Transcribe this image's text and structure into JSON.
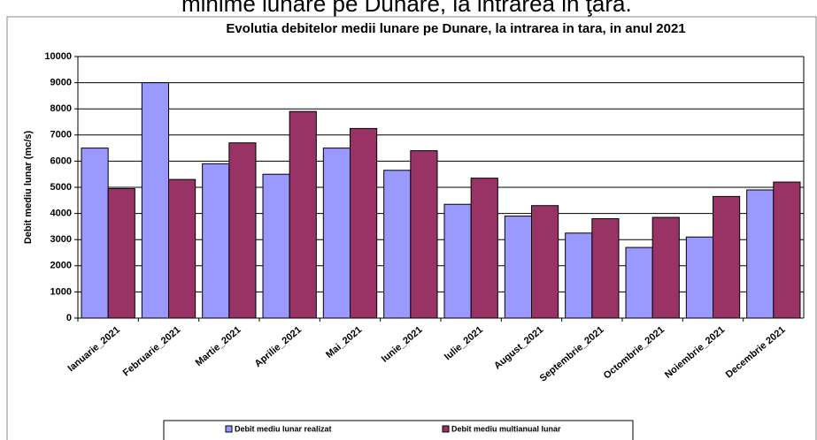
{
  "caption": "minime lunare pe Dunare, la intrarea in ţara.",
  "chart_data": {
    "type": "bar",
    "title": "Evolutia debitelor medii lunare pe Dunare, la intrarea in tara, in anul 2021",
    "y_label": "Debit mediu lunar (mc/s)",
    "categories": [
      "Ianuarie_2021",
      "Februarie_2021",
      "Martie_2021",
      "Aprilie_2021",
      "Mai_2021",
      "Iunie_2021",
      "Iulie_2021",
      "August_2021",
      "Septembrie_2021",
      "Octombrie_2021",
      "Noiembrie_2021",
      "Decembrie 2021"
    ],
    "series": [
      {
        "name": "Debit mediu lunar realizat",
        "color": "#9999ff",
        "values": [
          6500,
          9000,
          5900,
          5500,
          6500,
          5650,
          4350,
          3900,
          3250,
          2700,
          3100,
          4900
        ]
      },
      {
        "name": "Debit mediu multianual lunar",
        "color": "#993366",
        "values": [
          4950,
          5300,
          6700,
          7900,
          7250,
          6400,
          5350,
          4300,
          3800,
          3850,
          4650,
          5200
        ]
      }
    ],
    "ylim": [
      0,
      10000
    ],
    "yticks": [
      0,
      1000,
      2000,
      3000,
      4000,
      5000,
      6000,
      7000,
      8000,
      9000,
      10000
    ],
    "grid": true,
    "legend": "bottom"
  }
}
